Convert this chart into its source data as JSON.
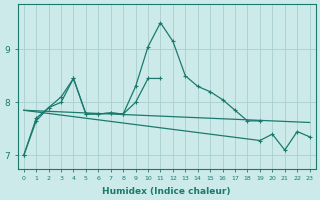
{
  "xlabel": "Humidex (Indice chaleur)",
  "bg_color": "#cdeaea",
  "grid_color": "#aacece",
  "line_color": "#1a7a6e",
  "x_values": [
    0,
    1,
    2,
    3,
    4,
    5,
    6,
    7,
    8,
    9,
    10,
    11,
    12,
    13,
    14,
    15,
    16,
    17,
    18,
    19,
    20,
    21,
    22,
    23
  ],
  "series1": [
    7.0,
    7.7,
    7.9,
    8.0,
    8.45,
    7.78,
    7.78,
    7.8,
    7.78,
    8.3,
    9.05,
    9.5,
    9.15,
    8.5,
    8.3,
    8.2,
    8.05,
    7.85,
    7.65,
    7.65,
    null,
    null,
    null,
    null
  ],
  "series2": [
    7.0,
    7.65,
    7.9,
    8.1,
    8.45,
    7.78,
    7.78,
    7.8,
    7.78,
    8.0,
    8.45,
    8.45,
    null,
    null,
    null,
    null,
    null,
    null,
    null,
    null,
    null,
    null,
    null,
    null
  ],
  "series3": [
    7.85,
    7.84,
    7.83,
    7.82,
    7.81,
    7.8,
    7.79,
    7.78,
    7.77,
    7.76,
    7.75,
    7.74,
    7.73,
    7.72,
    7.71,
    7.7,
    7.69,
    7.68,
    7.67,
    7.66,
    7.65,
    7.64,
    7.63,
    7.62
  ],
  "series4": [
    7.85,
    7.82,
    7.79,
    7.76,
    7.73,
    7.7,
    7.67,
    7.64,
    7.61,
    7.58,
    7.55,
    7.52,
    7.49,
    7.46,
    7.43,
    7.4,
    7.37,
    7.34,
    7.31,
    7.28,
    7.4,
    7.1,
    7.45,
    7.35
  ],
  "yticks": [
    7,
    8,
    9
  ],
  "ylim": [
    6.75,
    9.85
  ],
  "xlim": [
    -0.5,
    23.5
  ]
}
